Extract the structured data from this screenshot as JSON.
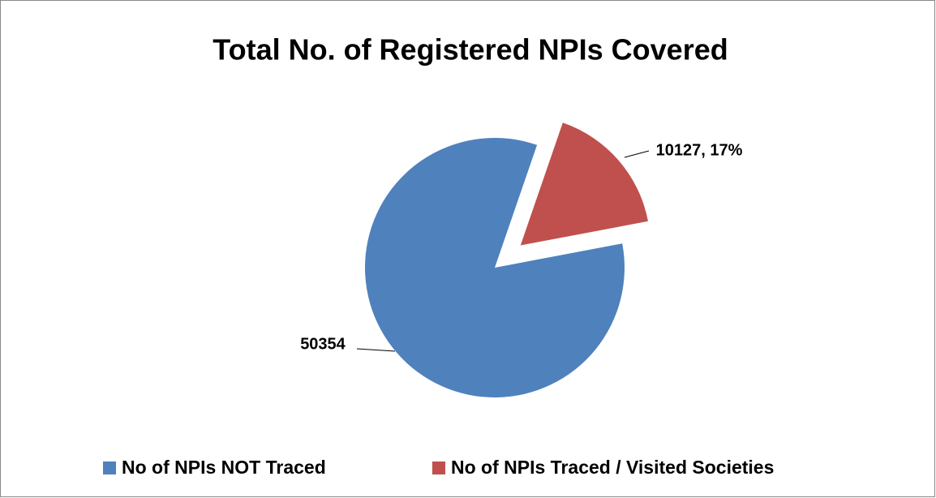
{
  "chart_data": {
    "type": "pie",
    "title": "Total No. of Registered NPIs Covered",
    "categories": [
      "No of NPIs NOT Traced",
      "No of NPIs Traced / Visited Societies"
    ],
    "values": [
      50354,
      10127
    ],
    "value_labels": [
      "50354",
      "10127, 17%"
    ],
    "colors": [
      "#4f81bd",
      "#c0504d"
    ],
    "legend": "bottom"
  }
}
